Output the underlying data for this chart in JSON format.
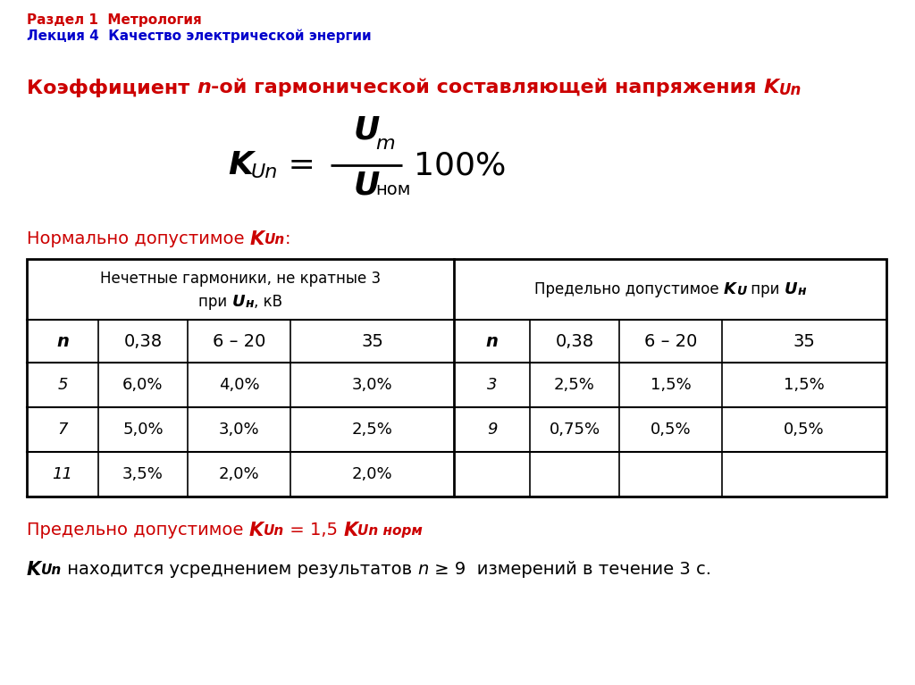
{
  "bg_color": "#ffffff",
  "header_line1": "Раздел 1  Метрология",
  "header_line2": "Лекция 4  Качество электрической энергии",
  "header_color1": "#cc0000",
  "header_color2": "#0000cc",
  "red_color": "#cc0000",
  "black_color": "#000000",
  "data_left": [
    [
      "5",
      "6,0%",
      "4,0%",
      "3,0%"
    ],
    [
      "7",
      "5,0%",
      "3,0%",
      "2,5%"
    ],
    [
      "11",
      "3,5%",
      "2,0%",
      "2,0%"
    ]
  ],
  "data_right": [
    [
      "3",
      "2,5%",
      "1,5%",
      "1,5%"
    ],
    [
      "9",
      "0,75%",
      "0,5%",
      "0,5%"
    ],
    [
      "",
      "",
      "",
      ""
    ]
  ]
}
